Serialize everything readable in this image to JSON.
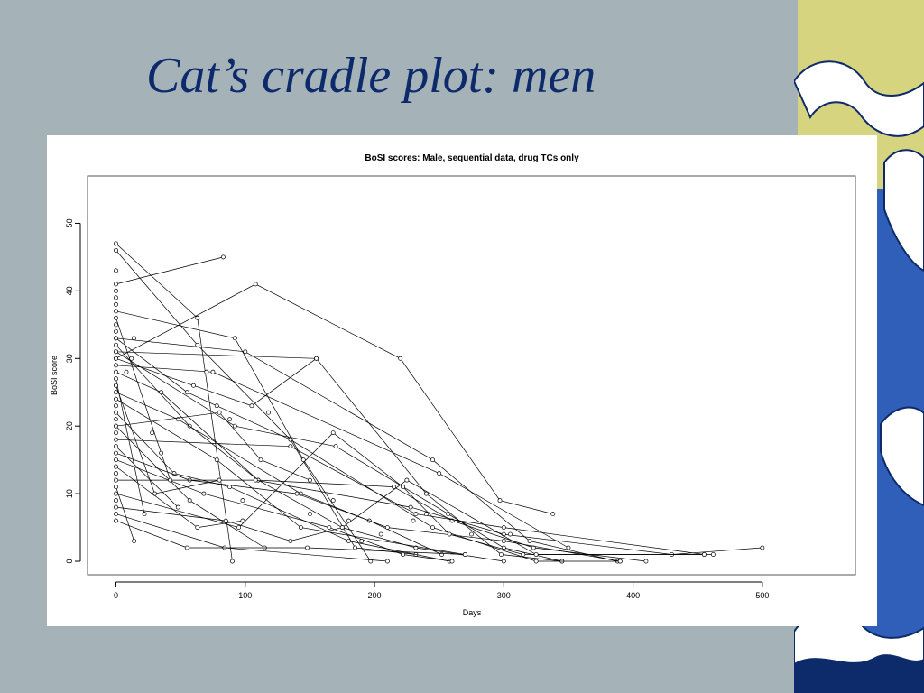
{
  "slide": {
    "title": "Cat’s cradle plot: men"
  },
  "theme": {
    "background": "#a5b3b8",
    "title_color": "#0d2a6b",
    "deco_yellow": "#d6d47f",
    "deco_blue": "#2f5fb8",
    "deco_navy": "#0d2a6b"
  },
  "chart_data": {
    "type": "line",
    "title": "BoSI scores: Male, sequential data, drug TCs only",
    "xlabel": "Days",
    "ylabel": "BoSI score",
    "xlim": [
      -22,
      572
    ],
    "ylim": [
      -2,
      57
    ],
    "xticks": [
      0,
      100,
      200,
      300,
      400,
      500
    ],
    "yticks": [
      0,
      10,
      20,
      30,
      40,
      50
    ],
    "grid": false,
    "marker": "open-circle",
    "series": [
      {
        "points": [
          [
            0,
            41
          ],
          [
            83,
            45
          ]
        ]
      },
      {
        "points": [
          [
            0,
            30
          ],
          [
            108,
            41
          ],
          [
            220,
            30
          ],
          [
            297,
            9
          ],
          [
            338,
            7
          ]
        ]
      },
      {
        "points": [
          [
            0,
            47
          ],
          [
            63,
            36
          ],
          [
            90,
            0
          ]
        ]
      },
      {
        "points": [
          [
            0,
            46
          ],
          [
            63,
            32
          ],
          [
            135,
            18
          ],
          [
            185,
            2
          ],
          [
            232,
            1
          ]
        ]
      },
      {
        "points": [
          [
            0,
            37
          ],
          [
            92,
            33
          ],
          [
            145,
            15
          ],
          [
            197,
            0
          ]
        ]
      },
      {
        "points": [
          [
            0,
            33
          ],
          [
            100,
            31
          ],
          [
            245,
            15
          ],
          [
            320,
            3
          ],
          [
            388,
            0
          ]
        ]
      },
      {
        "points": [
          [
            0,
            31
          ],
          [
            155,
            30
          ],
          [
            240,
            10
          ],
          [
            298,
            1
          ],
          [
            345,
            0
          ]
        ]
      },
      {
        "points": [
          [
            0,
            29
          ],
          [
            75,
            28
          ],
          [
            250,
            13
          ],
          [
            350,
            2
          ]
        ]
      },
      {
        "points": [
          [
            0,
            30
          ],
          [
            105,
            23
          ],
          [
            155,
            30
          ]
        ]
      },
      {
        "points": [
          [
            0,
            31
          ],
          [
            92,
            20
          ],
          [
            170,
            17
          ],
          [
            257,
            7
          ],
          [
            300,
            2
          ],
          [
            345,
            0
          ]
        ]
      },
      {
        "points": [
          [
            0,
            33
          ],
          [
            55,
            25
          ],
          [
            135,
            18
          ],
          [
            245,
            5
          ],
          [
            325,
            0
          ],
          [
            390,
            0
          ]
        ]
      },
      {
        "points": [
          [
            0,
            32
          ],
          [
            57,
            20
          ],
          [
            110,
            12
          ],
          [
            175,
            5
          ],
          [
            232,
            2
          ],
          [
            300,
            0
          ]
        ]
      },
      {
        "points": [
          [
            0,
            28
          ],
          [
            35,
            25
          ],
          [
            110,
            12
          ],
          [
            215,
            11
          ],
          [
            260,
            6
          ],
          [
            323,
            2
          ],
          [
            410,
            0
          ]
        ]
      },
      {
        "points": [
          [
            0,
            25
          ],
          [
            48,
            21
          ],
          [
            143,
            10
          ],
          [
            196,
            6
          ],
          [
            252,
            1
          ]
        ]
      },
      {
        "points": [
          [
            0,
            24
          ],
          [
            78,
            15
          ],
          [
            143,
            5
          ],
          [
            270,
            1
          ]
        ]
      },
      {
        "points": [
          [
            0,
            22
          ],
          [
            45,
            13
          ],
          [
            88,
            11
          ],
          [
            180,
            3
          ],
          [
            258,
            0
          ]
        ]
      },
      {
        "points": [
          [
            0,
            20
          ],
          [
            57,
            9
          ],
          [
            115,
            2
          ]
        ]
      },
      {
        "points": [
          [
            0,
            18
          ],
          [
            135,
            17
          ],
          [
            232,
            7
          ],
          [
            300,
            5
          ],
          [
            455,
            1
          ]
        ]
      },
      {
        "points": [
          [
            0,
            16
          ],
          [
            57,
            12
          ],
          [
            140,
            10
          ],
          [
            210,
            5
          ],
          [
            300,
            3
          ],
          [
            390,
            0
          ]
        ]
      },
      {
        "points": [
          [
            0,
            15
          ],
          [
            68,
            10
          ],
          [
            165,
            5
          ],
          [
            222,
            1
          ],
          [
            260,
            0
          ]
        ]
      },
      {
        "points": [
          [
            0,
            12
          ],
          [
            108,
            12
          ],
          [
            228,
            8
          ],
          [
            300,
            4
          ],
          [
            430,
            1
          ],
          [
            500,
            2
          ]
        ]
      },
      {
        "points": [
          [
            0,
            10
          ],
          [
            95,
            5
          ],
          [
            168,
            19
          ],
          [
            222,
            11
          ],
          [
            258,
            4
          ],
          [
            315,
            1
          ],
          [
            462,
            1
          ]
        ]
      },
      {
        "points": [
          [
            0,
            8
          ],
          [
            85,
            6
          ],
          [
            135,
            3
          ],
          [
            175,
            5
          ],
          [
            225,
            12
          ],
          [
            325,
            1
          ],
          [
            455,
            1
          ]
        ]
      },
      {
        "points": [
          [
            0,
            7
          ],
          [
            84,
            2
          ],
          [
            210,
            0
          ]
        ]
      },
      {
        "points": [
          [
            0,
            6
          ],
          [
            55,
            2
          ],
          [
            148,
            2
          ],
          [
            270,
            1
          ]
        ]
      },
      {
        "points": [
          [
            0,
            27
          ],
          [
            22,
            7
          ]
        ]
      },
      {
        "points": [
          [
            0,
            11
          ],
          [
            14,
            3
          ]
        ]
      },
      {
        "points": [
          [
            0,
            36
          ],
          [
            42,
            12
          ]
        ]
      },
      {
        "points": [
          [
            0,
            26
          ],
          [
            30,
            10
          ],
          [
            80,
            12
          ]
        ]
      },
      {
        "points": [
          [
            0,
            14
          ],
          [
            63,
            5
          ],
          [
            98,
            6
          ]
        ]
      },
      {
        "points": [
          [
            0,
            17
          ],
          [
            48,
            8
          ]
        ]
      },
      {
        "points": [
          [
            0,
            20
          ],
          [
            80,
            22
          ],
          [
            112,
            15
          ],
          [
            150,
            12
          ]
        ]
      }
    ],
    "extra_points": [
      [
        0,
        43
      ],
      [
        0,
        40
      ],
      [
        0,
        39
      ],
      [
        0,
        38
      ],
      [
        0,
        35
      ],
      [
        0,
        34
      ],
      [
        0,
        26
      ],
      [
        0,
        23
      ],
      [
        0,
        21
      ],
      [
        0,
        19
      ],
      [
        0,
        13
      ],
      [
        0,
        9
      ],
      [
        8,
        28
      ],
      [
        12,
        30
      ],
      [
        14,
        33
      ],
      [
        28,
        19
      ],
      [
        35,
        16
      ],
      [
        60,
        26
      ],
      [
        70,
        28
      ],
      [
        78,
        23
      ],
      [
        88,
        21
      ],
      [
        98,
        9
      ],
      [
        118,
        22
      ],
      [
        150,
        7
      ],
      [
        168,
        9
      ],
      [
        180,
        6
      ],
      [
        190,
        3
      ],
      [
        205,
        4
      ],
      [
        230,
        6
      ],
      [
        240,
        7
      ],
      [
        275,
        4
      ],
      [
        305,
        4
      ]
    ]
  }
}
